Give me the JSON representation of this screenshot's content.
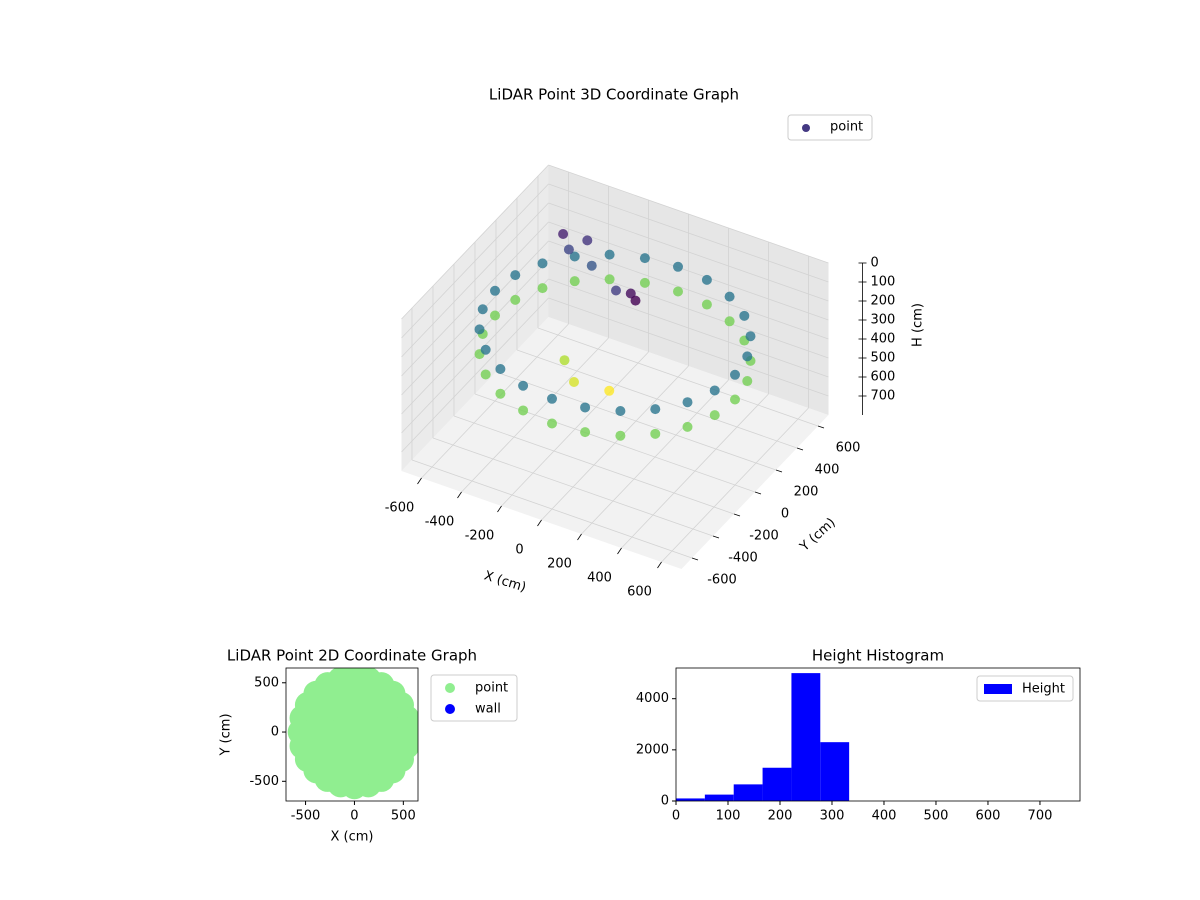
{
  "chart_data": [
    {
      "type": "scatter3d",
      "title": "LiDAR Point 3D Coordinate Graph",
      "xlabel": "X (cm)",
      "ylabel": "Y (cm)",
      "zlabel": "H (cm)",
      "xlim": [
        -700,
        700
      ],
      "ylim": [
        -700,
        700
      ],
      "zlim": [
        0,
        800
      ],
      "z_inverted": true,
      "xticks": [
        -600,
        -400,
        -200,
        0,
        200,
        400,
        600
      ],
      "yticks": [
        -600,
        -400,
        -200,
        0,
        200,
        400,
        600
      ],
      "zticks": [
        0,
        100,
        200,
        300,
        400,
        500,
        600,
        700
      ],
      "legend": "upper-right",
      "colormap": "viridis",
      "grid": true,
      "series": [
        {
          "name": "point",
          "color": "#443983",
          "x": [
            600,
            580,
            520,
            424,
            300,
            155,
            0,
            -155,
            -300,
            -424,
            -520,
            -580,
            -600,
            -580,
            -520,
            -424,
            -300,
            -155,
            0,
            155,
            300,
            424,
            520,
            580,
            600,
            580,
            520,
            424,
            300,
            155,
            0,
            -155,
            -300,
            -424,
            -520,
            -580,
            -600,
            -580,
            -520,
            -424,
            -300,
            -155,
            0,
            155,
            300,
            424,
            520,
            580,
            -480,
            -430,
            -380,
            -300,
            -100,
            0,
            50,
            -200,
            -100,
            50
          ],
          "y": [
            0,
            155,
            300,
            424,
            520,
            580,
            600,
            580,
            520,
            424,
            300,
            155,
            0,
            -155,
            -300,
            -424,
            -520,
            -580,
            -600,
            -580,
            -520,
            -424,
            -300,
            -155,
            0,
            155,
            300,
            424,
            520,
            580,
            600,
            580,
            520,
            424,
            300,
            155,
            0,
            -155,
            -300,
            -424,
            -520,
            -580,
            -600,
            -580,
            -520,
            -424,
            -300,
            -155,
            420,
            380,
            460,
            350,
            200,
            150,
            100,
            -100,
            -200,
            -150
          ],
          "z": [
            350,
            350,
            350,
            350,
            350,
            350,
            350,
            350,
            350,
            350,
            350,
            350,
            350,
            350,
            350,
            350,
            350,
            350,
            350,
            350,
            350,
            350,
            350,
            350,
            220,
            220,
            220,
            220,
            220,
            220,
            220,
            220,
            220,
            220,
            220,
            220,
            220,
            220,
            220,
            220,
            220,
            220,
            220,
            220,
            220,
            220,
            220,
            220,
            120,
            160,
            140,
            180,
            150,
            100,
            90,
            380,
            400,
            420
          ]
        }
      ]
    },
    {
      "type": "scatter",
      "title": "LiDAR Point 2D Coordinate Graph",
      "xlabel": "X (cm)",
      "ylabel": "Y (cm)",
      "xlim": [
        -700,
        650
      ],
      "ylim": [
        -700,
        650
      ],
      "xticks": [
        -500,
        0,
        500
      ],
      "yticks": [
        -500,
        0,
        500
      ],
      "legend": "outside-right",
      "series": [
        {
          "name": "point",
          "color": "#90ee90",
          "x": [
            550,
            531,
            476,
            389,
            275,
            142,
            0,
            -142,
            -275,
            -389,
            -476,
            -531,
            -550,
            -531,
            -476,
            -389,
            -275,
            -142,
            0,
            142,
            275,
            389,
            476,
            531,
            350,
            303,
            175,
            0,
            -175,
            -303,
            -350,
            -303,
            -175,
            0,
            175,
            303,
            150,
            75,
            -75,
            -150,
            -75,
            75,
            0
          ],
          "y": [
            0,
            142,
            275,
            389,
            476,
            531,
            550,
            531,
            476,
            389,
            275,
            142,
            0,
            -142,
            -275,
            -389,
            -476,
            -531,
            -550,
            -531,
            -476,
            -389,
            -275,
            -142,
            0,
            175,
            303,
            350,
            303,
            175,
            0,
            -175,
            -303,
            -350,
            -303,
            -175,
            0,
            130,
            130,
            0,
            -130,
            -130,
            0
          ]
        },
        {
          "name": "wall",
          "color": "#0000ff",
          "x": [],
          "y": []
        }
      ]
    },
    {
      "type": "histogram",
      "title": "Height Histogram",
      "xlim": [
        0,
        777
      ],
      "ylim": [
        0,
        5200
      ],
      "xticks": [
        0,
        100,
        200,
        300,
        400,
        500,
        600,
        700
      ],
      "yticks": [
        0,
        2000,
        4000
      ],
      "legend": "upper-right",
      "bins": [
        0,
        55.5,
        111,
        166.5,
        222,
        277.5,
        333,
        388.5,
        444,
        499.5,
        555,
        610.5,
        666,
        721.5,
        777
      ],
      "series": [
        {
          "name": "Height",
          "color": "#0000ff",
          "values": [
            100,
            250,
            650,
            1300,
            5000,
            2300,
            0,
            0,
            0,
            0,
            0,
            0,
            0,
            0
          ]
        }
      ]
    }
  ]
}
